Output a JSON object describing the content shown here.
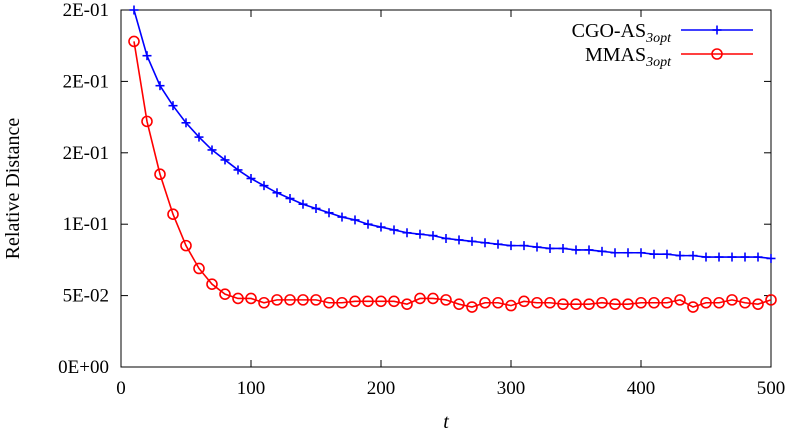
{
  "chart_data": {
    "type": "line",
    "title": "",
    "xlabel": "t",
    "ylabel": "Relative Distance",
    "xlim": [
      0,
      500
    ],
    "ylim": [
      0,
      0.25
    ],
    "x_ticks": [
      0,
      100,
      200,
      300,
      400,
      500
    ],
    "x_tick_labels": [
      "0",
      "100",
      "200",
      "300",
      "400",
      "500"
    ],
    "y_ticks": [
      0,
      0.05,
      0.1,
      0.15,
      0.2,
      0.25
    ],
    "y_tick_labels": [
      "0E+00",
      "5E-02",
      "1E-01",
      "2E-01",
      "2E-01",
      "2E-01"
    ],
    "grid": false,
    "legend_position": "top-right",
    "x": [
      10,
      20,
      30,
      40,
      50,
      60,
      70,
      80,
      90,
      100,
      110,
      120,
      130,
      140,
      150,
      160,
      170,
      180,
      190,
      200,
      210,
      220,
      230,
      240,
      250,
      260,
      270,
      280,
      290,
      300,
      310,
      320,
      330,
      340,
      350,
      360,
      370,
      380,
      390,
      400,
      410,
      420,
      430,
      440,
      450,
      460,
      470,
      480,
      490,
      500
    ],
    "series": [
      {
        "name": "CGO-AS",
        "name_subscript": "3opt",
        "color": "#0000ff",
        "marker": "plus",
        "values": [
          0.25,
          0.218,
          0.197,
          0.183,
          0.171,
          0.161,
          0.152,
          0.145,
          0.138,
          0.132,
          0.127,
          0.122,
          0.118,
          0.114,
          0.111,
          0.108,
          0.105,
          0.103,
          0.1,
          0.098,
          0.096,
          0.094,
          0.093,
          0.092,
          0.09,
          0.089,
          0.088,
          0.087,
          0.086,
          0.085,
          0.085,
          0.084,
          0.083,
          0.083,
          0.082,
          0.082,
          0.081,
          0.08,
          0.08,
          0.08,
          0.079,
          0.079,
          0.078,
          0.078,
          0.077,
          0.077,
          0.077,
          0.077,
          0.077,
          0.076
        ]
      },
      {
        "name": "MMAS",
        "name_subscript": "3opt",
        "color": "#ff0000",
        "marker": "circle",
        "values": [
          0.228,
          0.172,
          0.135,
          0.107,
          0.085,
          0.069,
          0.058,
          0.051,
          0.048,
          0.048,
          0.045,
          0.047,
          0.047,
          0.047,
          0.047,
          0.045,
          0.045,
          0.046,
          0.046,
          0.046,
          0.046,
          0.044,
          0.048,
          0.048,
          0.047,
          0.044,
          0.042,
          0.045,
          0.045,
          0.043,
          0.046,
          0.045,
          0.045,
          0.044,
          0.044,
          0.044,
          0.045,
          0.044,
          0.044,
          0.045,
          0.045,
          0.045,
          0.047,
          0.042,
          0.045,
          0.045,
          0.047,
          0.045,
          0.044,
          0.047
        ]
      }
    ]
  }
}
